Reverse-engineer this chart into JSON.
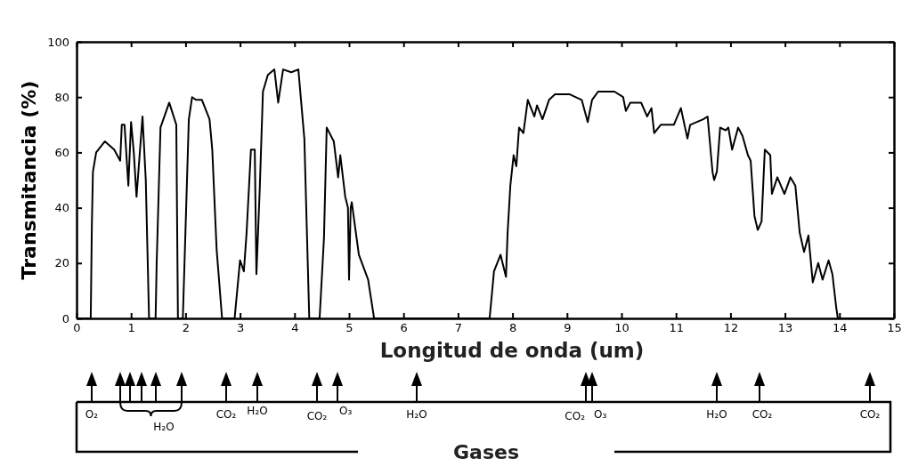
{
  "chart_data": {
    "type": "line",
    "xlabel": "Longitud de onda (um)",
    "ylabel": "Transmitancia (%)",
    "xlim": [
      0,
      15
    ],
    "xticks": [
      0,
      1,
      2,
      3,
      4,
      5,
      6,
      7,
      8,
      9,
      10,
      11,
      12,
      13,
      14,
      15
    ],
    "ylim": [
      0,
      100
    ],
    "yticks": [
      0,
      20,
      40,
      60,
      80,
      100
    ],
    "grid": false,
    "marker": "none",
    "line_style": "solid",
    "series": [
      {
        "color": "#000000",
        "x": [
          0,
          0.26,
          0.28,
          0.3,
          0.36,
          0.52,
          0.69,
          0.8,
          0.83,
          0.88,
          0.95,
          1.0,
          1.05,
          1.1,
          1.21,
          1.27,
          1.33,
          1.45,
          1.47,
          1.54,
          1.7,
          1.83,
          1.86,
          1.95,
          2.06,
          2.12,
          2.19,
          2.3,
          2.44,
          2.49,
          2.57,
          2.67,
          2.9,
          3.0,
          3.07,
          3.12,
          3.2,
          3.27,
          3.3,
          3.36,
          3.42,
          3.51,
          3.63,
          3.7,
          3.79,
          3.94,
          4.07,
          4.18,
          4.27,
          4.46,
          4.54,
          4.59,
          4.72,
          4.8,
          4.84,
          4.93,
          4.98,
          5.0,
          5.03,
          5.05,
          5.18,
          5.35,
          5.46,
          7.58,
          7.66,
          7.78,
          7.88,
          7.91,
          7.96,
          8.02,
          8.07,
          8.12,
          8.2,
          8.28,
          8.4,
          8.45,
          8.55,
          8.67,
          8.78,
          9.05,
          9.27,
          9.38,
          9.46,
          9.57,
          9.87,
          10.03,
          10.08,
          10.16,
          10.36,
          10.47,
          10.55,
          10.6,
          10.72,
          10.96,
          11.09,
          11.21,
          11.26,
          11.5,
          11.58,
          11.67,
          11.7,
          11.75,
          11.81,
          11.91,
          11.96,
          12.03,
          12.14,
          12.22,
          12.32,
          12.37,
          12.44,
          12.5,
          12.57,
          12.63,
          12.73,
          12.76,
          12.86,
          12.99,
          13.1,
          13.19,
          13.27,
          13.35,
          13.43,
          13.51,
          13.61,
          13.69,
          13.8,
          13.87,
          13.94,
          13.97,
          15
        ],
        "values": [
          0,
          0,
          33,
          53,
          60,
          64,
          61,
          57,
          70,
          70,
          48,
          71,
          60,
          44,
          73,
          50,
          0,
          0,
          20,
          69,
          78,
          70,
          0,
          0,
          72,
          80,
          79,
          79,
          72,
          61,
          25,
          0,
          0,
          21,
          17,
          31,
          61,
          61,
          16,
          46,
          82,
          88,
          90,
          78,
          90,
          89,
          90,
          65,
          0,
          0,
          29,
          69,
          64,
          51,
          59,
          44,
          40,
          14,
          40,
          42,
          23,
          14,
          0,
          0,
          17,
          23,
          15,
          31,
          48,
          59,
          55,
          69,
          67,
          79,
          73,
          77,
          72,
          79,
          81,
          81,
          79,
          71,
          79,
          82,
          82,
          80,
          75,
          78,
          78,
          73,
          76,
          67,
          70,
          70,
          76,
          65,
          70,
          72,
          73,
          53,
          50,
          53,
          69,
          68,
          69,
          61,
          69,
          66,
          59,
          57,
          37,
          32,
          35,
          61,
          59,
          45,
          51,
          45,
          51,
          48,
          31,
          24,
          30,
          13,
          20,
          14,
          21,
          16,
          4,
          0,
          0
        ]
      }
    ],
    "annotations": [
      "O₂",
      "H₂O",
      "CO₂",
      "H₂O",
      "CO₂",
      "O₃",
      "H₂O",
      "CO₂",
      "O₃",
      "H₂O",
      "CO₂",
      "CO₂",
      "Gases"
    ]
  }
}
